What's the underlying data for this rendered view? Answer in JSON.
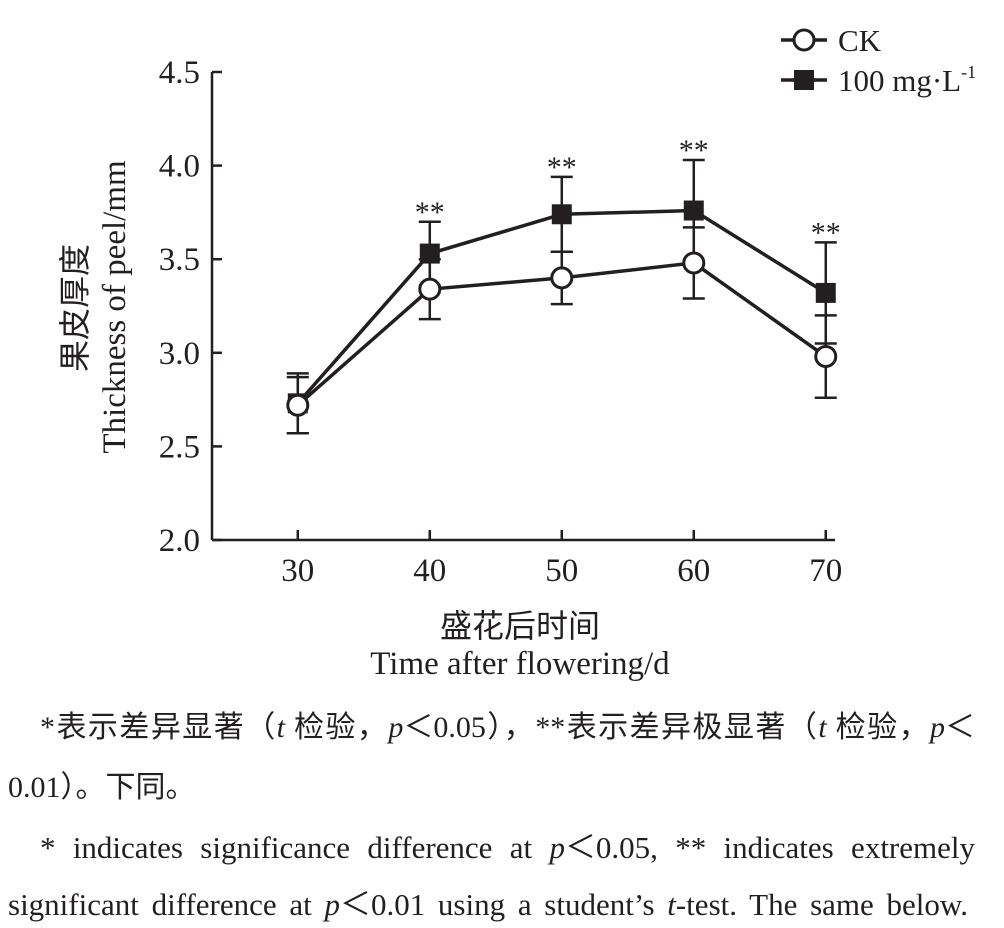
{
  "chart_data": {
    "type": "line",
    "x": [
      30,
      40,
      50,
      60,
      70
    ],
    "xticks": [
      "30",
      "40",
      "50",
      "60",
      "70"
    ],
    "yticks": [
      "2.0",
      "2.5",
      "3.0",
      "3.5",
      "4.0",
      "4.5"
    ],
    "xlim": [
      23.5,
      70.7
    ],
    "ylim": [
      2.0,
      4.5
    ],
    "xlabel": "盛花后时间",
    "xlabel_en": "Time after flowering/d",
    "ylabel": "果皮厚度",
    "ylabel_en": "Thickness of peel/mm",
    "grid": false,
    "legend": "top-right",
    "series": [
      {
        "name": "CK",
        "marker": "open-circle",
        "values": [
          2.72,
          3.34,
          3.4,
          3.48,
          2.98
        ],
        "errors": [
          0.15,
          0.16,
          0.14,
          0.19,
          0.22
        ]
      },
      {
        "name": "100 mg·L",
        "name_sup": "-1",
        "marker": "filled-square",
        "values": [
          2.73,
          3.53,
          3.74,
          3.76,
          3.32
        ],
        "errors": [
          0.16,
          0.17,
          0.2,
          0.27,
          0.27
        ]
      }
    ],
    "significance": [
      "",
      "**",
      "**",
      "**",
      "**"
    ],
    "colors": {
      "ink": "#231f20",
      "background": "#ffffff"
    }
  },
  "caption": {
    "zh_line1": [
      "*表示差异显著（",
      "t",
      " 检验，",
      "p",
      "＜0.05），**表示差异极显著（",
      "t",
      " 检验，",
      "p",
      "＜"
    ],
    "zh_line2": [
      "0.01）。下同。"
    ],
    "en_line1": [
      "* indicates significance difference at ",
      "p",
      "＜0.05, ** indicates extremely"
    ],
    "en_line2": [
      "significant difference at ",
      "p",
      "＜0.01 using a student’s ",
      "t",
      "-test. The same below."
    ]
  }
}
